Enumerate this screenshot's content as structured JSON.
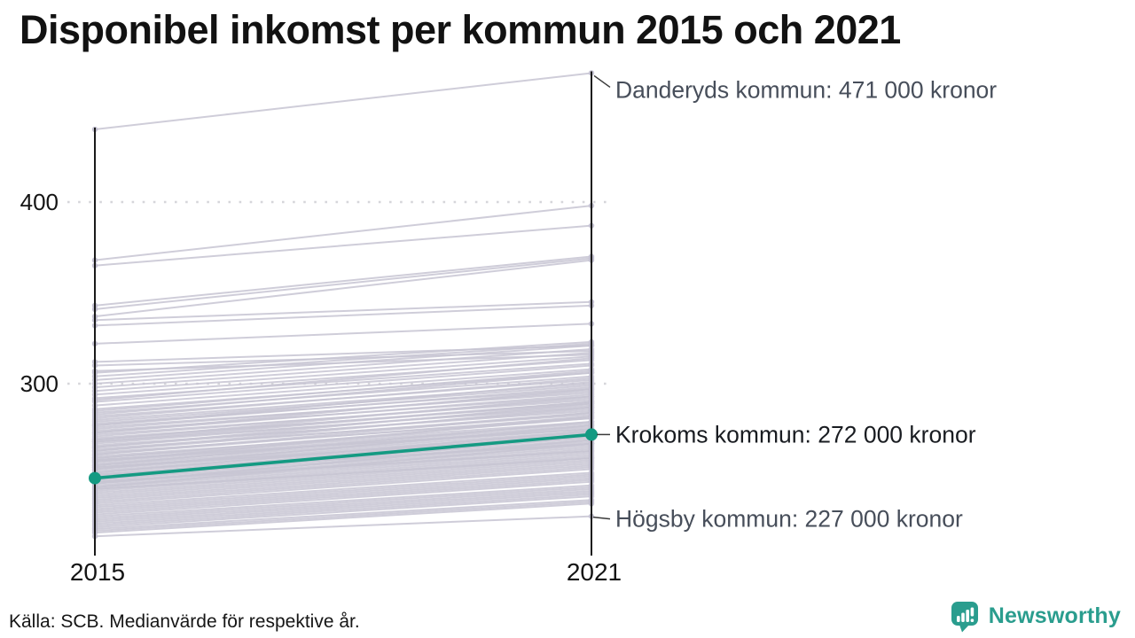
{
  "title": "Disponibel inkomst per kommun 2015 och 2021",
  "footer": {
    "source": "Källa: SCB. Medianvärde för respektive år."
  },
  "branding": {
    "name": "Newsworthy",
    "color": "#2a9d8e"
  },
  "colors": {
    "highlight": "#149a82",
    "line_gray": "#c7c5d3",
    "dot_gray": "#bfbdcd",
    "axis": "#1a1a1a",
    "grid": "#d6d6da",
    "tick_text": "#141414",
    "label_gray": "#474e5a",
    "label_dark": "#191c21"
  },
  "chart_data": {
    "type": "line",
    "subtype": "slope-chart",
    "title": "Disponibel inkomst per kommun 2015 och 2021",
    "x_categories": [
      "2015",
      "2021"
    ],
    "y_ticks": [
      400,
      300
    ],
    "ylim": [
      206,
      480
    ],
    "y_unit": "tusen kronor",
    "grid": "dotted-horizontal",
    "annotations": [
      {
        "name": "Danderyds kommun",
        "label": "Danderyds kommun: 471 000 kronor",
        "value_2015": 440,
        "value_2021": 471,
        "highlight": false
      },
      {
        "name": "Krokoms kommun",
        "label": "Krokoms kommun: 272 000 kronor",
        "value_2015": 248,
        "value_2021": 272,
        "highlight": true
      },
      {
        "name": "Högsby kommun",
        "label": "Högsby kommun: 227 000 kronor",
        "value_2015": 216,
        "value_2021": 227,
        "highlight": false
      }
    ],
    "highlighted_series": {
      "name": "Krokoms kommun",
      "values": [
        248,
        272
      ]
    },
    "background_series": [
      [
        440,
        471
      ],
      [
        368,
        398
      ],
      [
        365,
        387
      ],
      [
        343,
        370
      ],
      [
        341,
        369
      ],
      [
        337,
        368
      ],
      [
        335,
        345
      ],
      [
        332,
        343
      ],
      [
        322,
        333
      ],
      [
        312,
        321
      ],
      [
        310,
        318
      ],
      [
        307,
        316
      ],
      [
        306,
        323
      ],
      [
        304,
        322
      ],
      [
        302,
        321
      ],
      [
        300,
        319
      ],
      [
        298,
        317
      ],
      [
        296,
        315
      ],
      [
        294,
        313
      ],
      [
        292,
        311
      ],
      [
        291,
        314
      ],
      [
        290,
        310
      ],
      [
        288,
        308
      ],
      [
        286,
        306
      ],
      [
        285,
        307
      ],
      [
        284,
        304
      ],
      [
        283,
        306
      ],
      [
        282,
        302
      ],
      [
        281,
        303
      ],
      [
        280,
        300
      ],
      [
        279,
        299
      ],
      [
        278,
        297
      ],
      [
        277,
        301
      ],
      [
        277,
        298
      ],
      [
        276,
        295
      ],
      [
        275,
        296
      ],
      [
        274,
        293
      ],
      [
        273,
        297
      ],
      [
        273,
        294
      ],
      [
        272,
        291
      ],
      [
        271,
        292
      ],
      [
        270,
        289
      ],
      [
        269,
        293
      ],
      [
        269,
        290
      ],
      [
        268,
        290
      ],
      [
        268,
        287
      ],
      [
        267,
        288
      ],
      [
        266,
        285
      ],
      [
        265,
        289
      ],
      [
        265,
        286
      ],
      [
        264,
        283
      ],
      [
        263,
        287
      ],
      [
        263,
        284
      ],
      [
        262,
        281
      ],
      [
        261,
        284
      ],
      [
        261,
        282
      ],
      [
        260,
        279
      ],
      [
        259,
        281
      ],
      [
        259,
        278
      ],
      [
        258,
        277
      ],
      [
        258,
        275
      ],
      [
        257,
        282
      ],
      [
        257,
        276
      ],
      [
        256,
        275
      ],
      [
        255,
        279
      ],
      [
        255,
        274
      ],
      [
        254,
        273
      ],
      [
        254,
        271
      ],
      [
        253,
        277
      ],
      [
        253,
        272
      ],
      [
        252,
        271
      ],
      [
        251,
        274
      ],
      [
        251,
        270
      ],
      [
        250,
        269
      ],
      [
        250,
        267
      ],
      [
        249,
        273
      ],
      [
        249,
        268
      ],
      [
        248,
        267
      ],
      [
        247,
        271
      ],
      [
        247,
        266
      ],
      [
        246,
        265
      ],
      [
        246,
        263
      ],
      [
        245,
        269
      ],
      [
        245,
        264
      ],
      [
        244,
        263
      ],
      [
        243,
        267
      ],
      [
        243,
        262
      ],
      [
        242,
        261
      ],
      [
        242,
        259
      ],
      [
        241,
        260
      ],
      [
        240,
        259
      ],
      [
        239,
        258
      ],
      [
        238,
        257
      ],
      [
        237,
        256
      ],
      [
        236,
        255
      ],
      [
        235,
        254
      ],
      [
        234,
        253
      ],
      [
        233,
        251
      ],
      [
        232,
        250
      ],
      [
        231,
        249
      ],
      [
        230,
        248
      ],
      [
        229,
        247
      ],
      [
        228,
        246
      ],
      [
        227,
        244
      ],
      [
        226,
        243
      ],
      [
        225,
        242
      ],
      [
        224,
        241
      ],
      [
        223,
        240
      ],
      [
        222,
        239
      ],
      [
        221,
        238
      ],
      [
        220,
        236
      ],
      [
        219,
        235
      ],
      [
        218,
        234
      ],
      [
        216,
        227
      ]
    ]
  }
}
